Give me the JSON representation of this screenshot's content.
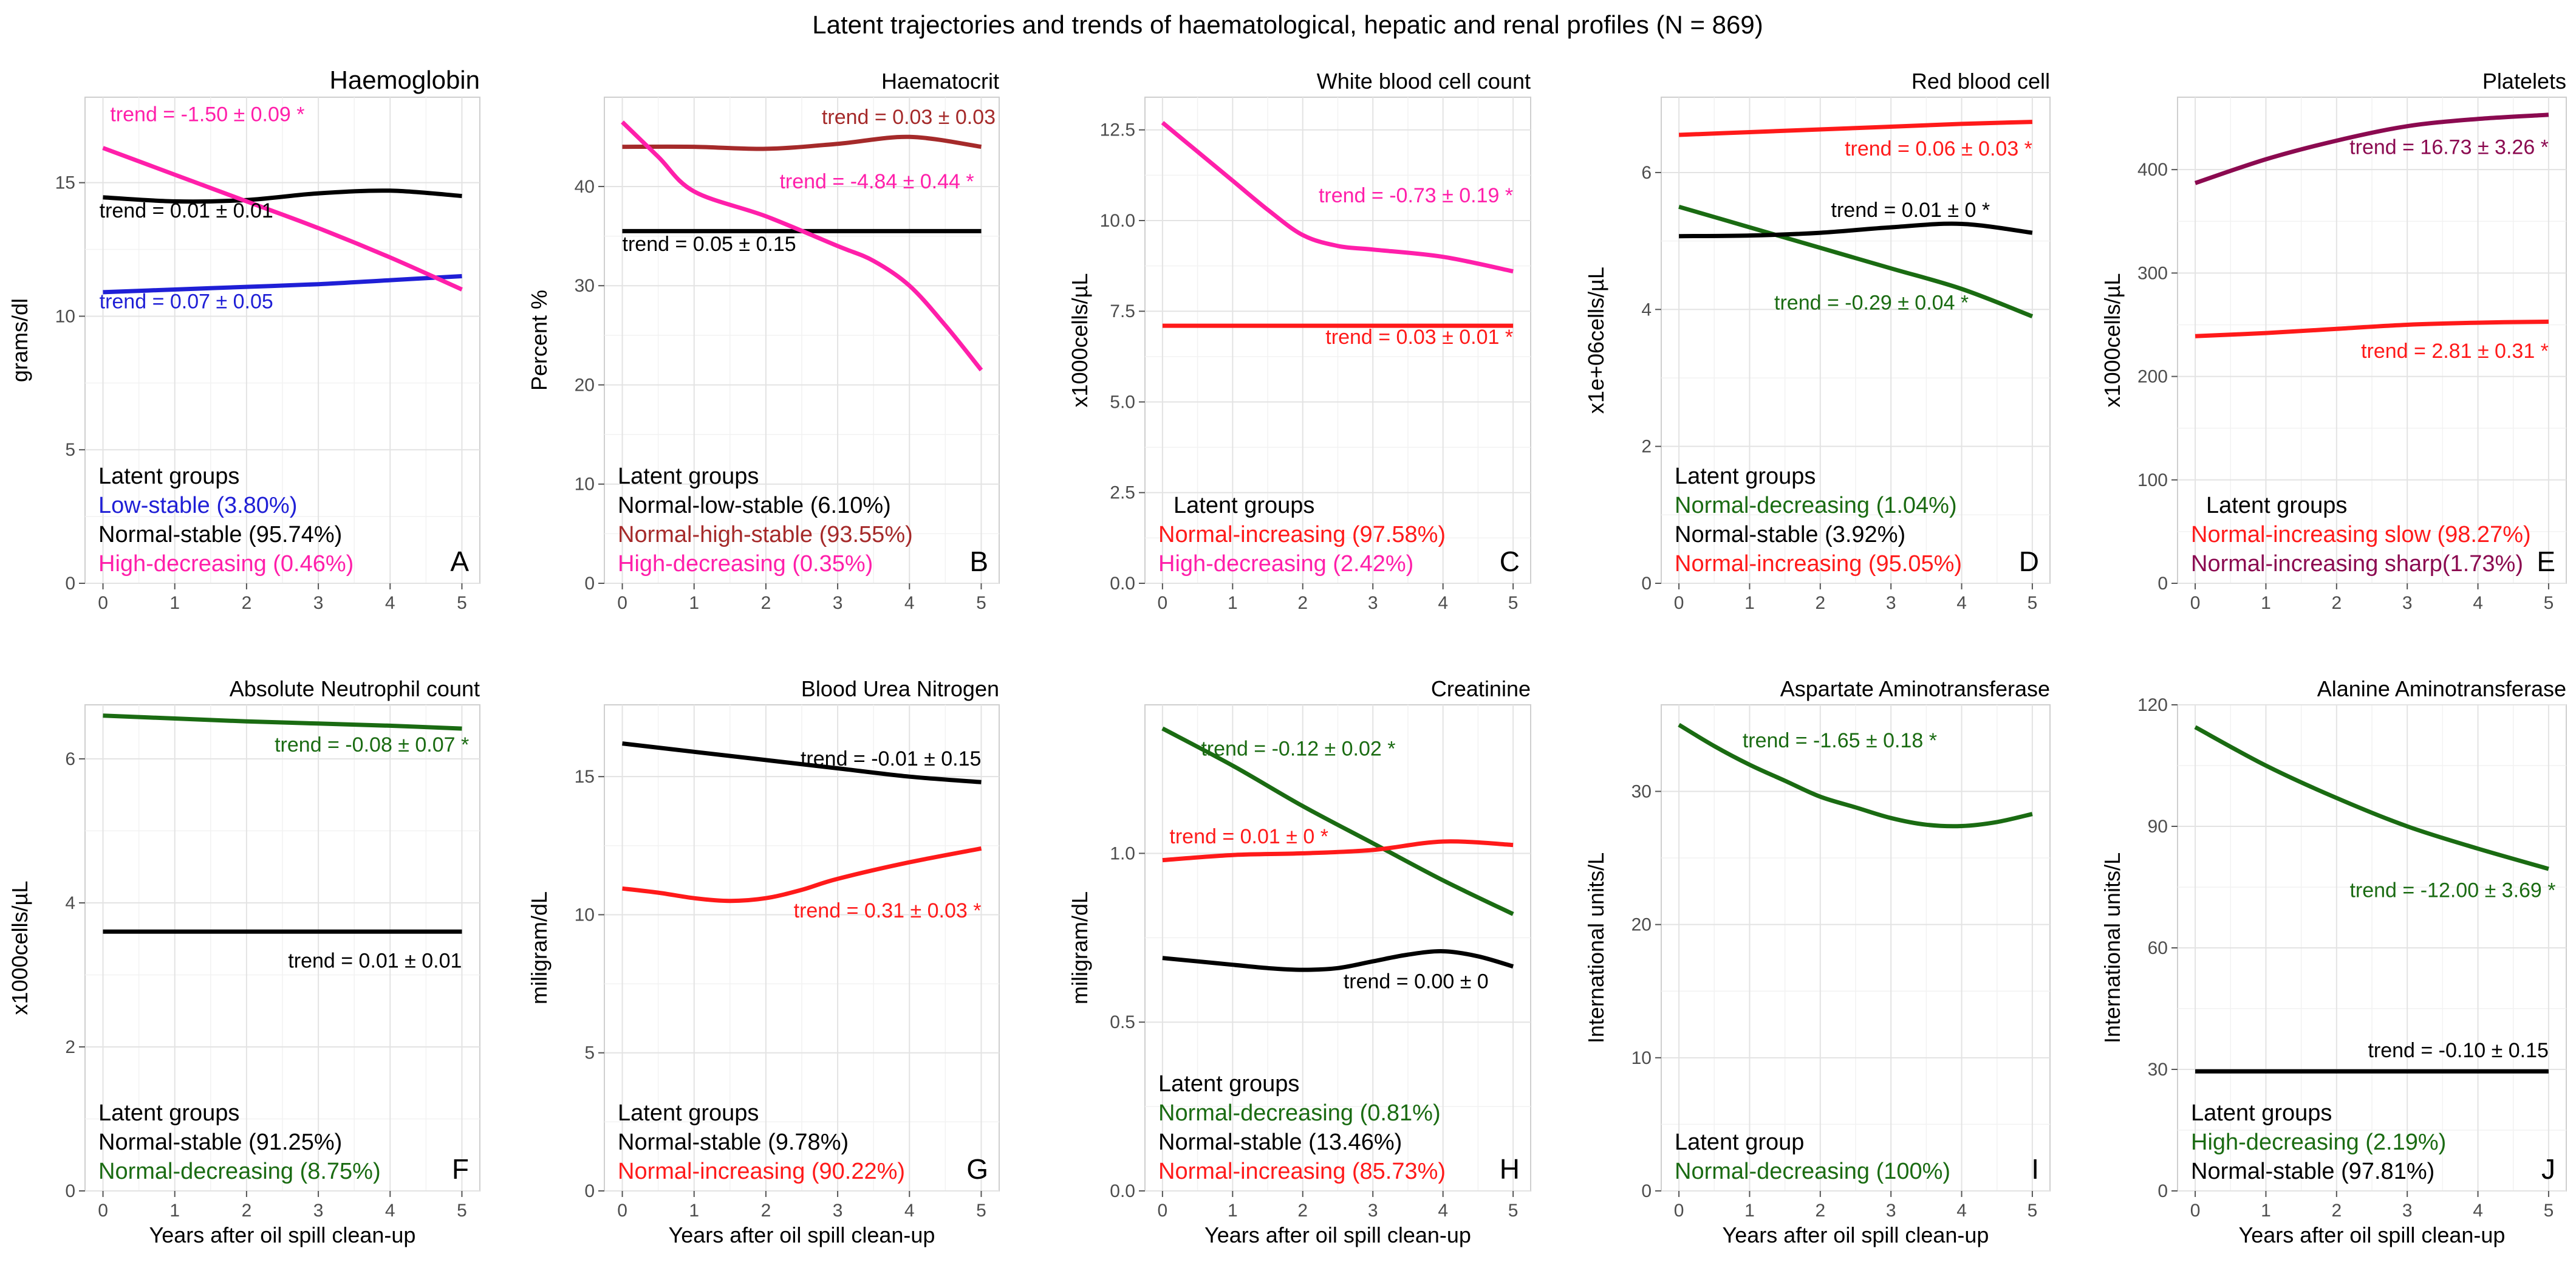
{
  "figure_title": "Latent trajectories and trends of haematological, hepatic and renal profiles (N = 869)",
  "colors": {
    "blue": "#1f1fd6",
    "black": "#000000",
    "magenta": "#ff1faa",
    "brown": "#a52a2a",
    "red": "#ff1a1a",
    "green": "#1a6b12",
    "maroon": "#8b0a50"
  },
  "chart_data": [
    {
      "type": "line",
      "letter": "A",
      "title": "Haemoglobin",
      "ylabel": "grams/dl",
      "xlabel": "",
      "ylim": [
        0,
        18.2
      ],
      "yticks": [
        0,
        5,
        10,
        15
      ],
      "xlim": [
        -0.25,
        5.25
      ],
      "xticks": [
        0,
        1,
        2,
        3,
        4,
        5
      ],
      "legend_title": "Latent groups",
      "series": [
        {
          "name": "Low-stable (3.80%)",
          "color": "#1f1fd6",
          "x": [
            0,
            1,
            2,
            3,
            4,
            5
          ],
          "y": [
            10.9,
            11.0,
            11.1,
            11.2,
            11.35,
            11.5
          ]
        },
        {
          "name": "Normal-stable (95.74%)",
          "color": "#000000",
          "x": [
            0,
            1,
            2,
            3,
            4,
            5
          ],
          "y": [
            14.45,
            14.3,
            14.35,
            14.6,
            14.7,
            14.5
          ]
        },
        {
          "name": "High-decreasing (0.46%)",
          "color": "#ff1faa",
          "x": [
            0,
            1,
            2,
            3,
            4,
            5
          ],
          "y": [
            16.3,
            15.3,
            14.3,
            13.3,
            12.2,
            11.0
          ]
        }
      ],
      "annotations": [
        {
          "text": "trend = -1.50 ± 0.09 *",
          "color": "#ff1faa",
          "x": 0.1,
          "y": 17.3,
          "anchor": "start"
        },
        {
          "text": "trend = 0.01 ± 0.01",
          "color": "#000000",
          "x": -0.05,
          "y": 13.7,
          "anchor": "start"
        },
        {
          "text": "trend = 0.07 ± 0.05",
          "color": "#1f1fd6",
          "x": -0.05,
          "y": 10.3,
          "anchor": "start"
        }
      ]
    },
    {
      "type": "line",
      "letter": "B",
      "title": "Haematocrit",
      "ylabel": "Percent %",
      "xlabel": "",
      "ylim": [
        0,
        49
      ],
      "yticks": [
        0,
        10,
        20,
        30,
        40
      ],
      "xlim": [
        -0.25,
        5.25
      ],
      "xticks": [
        0,
        1,
        2,
        3,
        4,
        5
      ],
      "legend_title": "Latent groups",
      "series": [
        {
          "name": "Normal-low-stable (6.10%)",
          "color": "#000000",
          "x": [
            0,
            1,
            2,
            3,
            4,
            5
          ],
          "y": [
            35.5,
            35.5,
            35.5,
            35.5,
            35.5,
            35.5
          ]
        },
        {
          "name": "Normal-high-stable (93.55%)",
          "color": "#a52a2a",
          "x": [
            0,
            1,
            2,
            3,
            4,
            5
          ],
          "y": [
            44.0,
            44.0,
            43.8,
            44.3,
            45.0,
            44.0
          ]
        },
        {
          "name": "High-decreasing (0.35%)",
          "color": "#ff1faa",
          "x": [
            0,
            0.5,
            1,
            2,
            3,
            3.5,
            4,
            4.5,
            5
          ],
          "y": [
            46.5,
            43.0,
            39.5,
            37.0,
            34.0,
            32.5,
            30.0,
            26.0,
            21.5
          ]
        }
      ],
      "annotations": [
        {
          "text": "trend = 0.03 ± 0.03",
          "color": "#a52a2a",
          "x": 5.2,
          "y": 46.3,
          "anchor": "end"
        },
        {
          "text": "trend = -4.84 ± 0.44 *",
          "color": "#ff1faa",
          "x": 4.9,
          "y": 39.8,
          "anchor": "end"
        },
        {
          "text": "trend = 0.05 ± 0.15",
          "color": "#000000",
          "x": 0.0,
          "y": 33.5,
          "anchor": "start"
        }
      ]
    },
    {
      "type": "line",
      "letter": "C",
      "title": "White blood cell count",
      "ylabel": "x1000cells/µL",
      "xlabel": "",
      "ylim": [
        0,
        13.4
      ],
      "yticks": [
        0.0,
        2.5,
        5.0,
        7.5,
        10.0,
        12.5
      ],
      "xlim": [
        -0.25,
        5.25
      ],
      "xticks": [
        0,
        1,
        2,
        3,
        4,
        5
      ],
      "legend_title": "Latent groups",
      "series": [
        {
          "name": "Normal-increasing (97.58%)",
          "color": "#ff1a1a",
          "x": [
            0,
            1,
            2,
            3,
            4,
            5
          ],
          "y": [
            7.1,
            7.1,
            7.1,
            7.1,
            7.1,
            7.1
          ]
        },
        {
          "name": "High-decreasing (2.42%)",
          "color": "#ff1faa",
          "x": [
            0,
            0.5,
            1,
            1.5,
            2,
            2.5,
            3,
            4,
            5
          ],
          "y": [
            12.7,
            11.9,
            11.1,
            10.3,
            9.6,
            9.3,
            9.2,
            9.0,
            8.6
          ]
        }
      ],
      "annotations": [
        {
          "text": "trend = -0.73 ± 0.19 *",
          "color": "#ff1faa",
          "x": 5.0,
          "y": 10.5,
          "anchor": "end"
        },
        {
          "text": "trend = 0.03 ± 0.01 *",
          "color": "#ff1a1a",
          "x": 5.0,
          "y": 6.6,
          "anchor": "end"
        }
      ]
    },
    {
      "type": "line",
      "letter": "D",
      "title": "Red blood cell",
      "ylabel": "x1e+06cells/µL",
      "xlabel": "",
      "ylim": [
        0,
        7.1
      ],
      "yticks": [
        0,
        2,
        4,
        6
      ],
      "xlim": [
        -0.25,
        5.25
      ],
      "xticks": [
        0,
        1,
        2,
        3,
        4,
        5
      ],
      "legend_title": "Latent groups",
      "series": [
        {
          "name": "Normal-decreasing (1.04%)",
          "color": "#1a6b12",
          "x": [
            0,
            1,
            2,
            3,
            4,
            5
          ],
          "y": [
            5.5,
            5.2,
            4.9,
            4.6,
            4.3,
            3.9
          ]
        },
        {
          "name": "Normal-stable (3.92%)",
          "color": "#000000",
          "x": [
            0,
            1,
            2,
            3,
            4,
            5
          ],
          "y": [
            5.07,
            5.08,
            5.12,
            5.2,
            5.25,
            5.12
          ]
        },
        {
          "name": "Normal-increasing (95.05%)",
          "color": "#ff1a1a",
          "x": [
            0,
            1,
            2,
            3,
            4,
            5
          ],
          "y": [
            6.55,
            6.59,
            6.63,
            6.67,
            6.71,
            6.74
          ]
        }
      ],
      "annotations": [
        {
          "text": "trend = 0.06 ± 0.03 *",
          "color": "#ff1a1a",
          "x": 5.0,
          "y": 6.25,
          "anchor": "end"
        },
        {
          "text": "trend = 0.01 ± 0 *",
          "color": "#000000",
          "x": 4.4,
          "y": 5.35,
          "anchor": "end"
        },
        {
          "text": "trend = -0.29 ± 0.04 *",
          "color": "#1a6b12",
          "x": 4.1,
          "y": 4.0,
          "anchor": "end"
        }
      ]
    },
    {
      "type": "line",
      "letter": "E",
      "title": "Platelets",
      "ylabel": "x1000cells/µL",
      "xlabel": "",
      "ylim": [
        0,
        470
      ],
      "yticks": [
        0,
        100,
        200,
        300,
        400
      ],
      "xlim": [
        -0.25,
        5.25
      ],
      "xticks": [
        0,
        1,
        2,
        3,
        4,
        5
      ],
      "legend_title": "Latent groups",
      "series": [
        {
          "name": "Normal-increasing slow (98.27%)",
          "color": "#ff1a1a",
          "x": [
            0,
            1,
            2,
            3,
            4,
            5
          ],
          "y": [
            239,
            242,
            246,
            250,
            252,
            253
          ]
        },
        {
          "name": "Normal-increasing sharp(1.73%)",
          "color": "#8b0a50",
          "x": [
            0,
            1,
            2,
            3,
            4,
            5
          ],
          "y": [
            387,
            410,
            428,
            442,
            449,
            453
          ]
        }
      ],
      "annotations": [
        {
          "text": "trend = 16.73 ± 3.26 *",
          "color": "#8b0a50",
          "x": 5.0,
          "y": 415,
          "anchor": "end"
        },
        {
          "text": "trend = 2.81 ± 0.31 *",
          "color": "#ff1a1a",
          "x": 5.0,
          "y": 218,
          "anchor": "end"
        }
      ]
    },
    {
      "type": "line",
      "letter": "F",
      "title": "Absolute Neutrophil count",
      "ylabel": "x1000cells/µL",
      "xlabel": "Years after oil spill clean-up",
      "ylim": [
        0,
        6.75
      ],
      "yticks": [
        0,
        2,
        4,
        6
      ],
      "xlim": [
        -0.25,
        5.25
      ],
      "xticks": [
        0,
        1,
        2,
        3,
        4,
        5
      ],
      "legend_title": "Latent groups",
      "series": [
        {
          "name": "Normal-stable (91.25%)",
          "color": "#000000",
          "x": [
            0,
            1,
            2,
            3,
            4,
            5
          ],
          "y": [
            3.6,
            3.6,
            3.6,
            3.6,
            3.6,
            3.6
          ]
        },
        {
          "name": "Normal-decreasing (8.75%)",
          "color": "#1a6b12",
          "x": [
            0,
            1,
            2,
            3,
            4,
            5
          ],
          "y": [
            6.6,
            6.56,
            6.52,
            6.49,
            6.46,
            6.42
          ]
        }
      ],
      "annotations": [
        {
          "text": "trend = -0.08 ± 0.07 *",
          "color": "#1a6b12",
          "x": 5.1,
          "y": 6.1,
          "anchor": "end"
        },
        {
          "text": "trend = 0.01 ± 0.01",
          "color": "#000000",
          "x": 5.0,
          "y": 3.1,
          "anchor": "end"
        }
      ]
    },
    {
      "type": "line",
      "letter": "G",
      "title": "Blood Urea Nitrogen",
      "ylabel": "miligram/dL",
      "xlabel": "Years after oil spill clean-up",
      "ylim": [
        0,
        17.6
      ],
      "yticks": [
        0,
        5,
        10,
        15
      ],
      "xlim": [
        -0.25,
        5.25
      ],
      "xticks": [
        0,
        1,
        2,
        3,
        4,
        5
      ],
      "legend_title": "Latent groups",
      "series": [
        {
          "name": "Normal-stable (9.78%)",
          "color": "#000000",
          "x": [
            0,
            1,
            2,
            3,
            4,
            5
          ],
          "y": [
            16.2,
            15.9,
            15.6,
            15.3,
            15.0,
            14.8
          ]
        },
        {
          "name": "Normal-increasing (90.22%)",
          "color": "#ff1a1a",
          "x": [
            0,
            0.5,
            1,
            1.5,
            2,
            2.5,
            3,
            4,
            5
          ],
          "y": [
            10.95,
            10.8,
            10.6,
            10.5,
            10.6,
            10.9,
            11.3,
            11.9,
            12.4
          ]
        }
      ],
      "annotations": [
        {
          "text": "trend = -0.01 ± 0.15",
          "color": "#000000",
          "x": 5.0,
          "y": 15.4,
          "anchor": "end"
        },
        {
          "text": "trend = 0.31 ± 0.03 *",
          "color": "#ff1a1a",
          "x": 5.0,
          "y": 9.9,
          "anchor": "end"
        }
      ]
    },
    {
      "type": "line",
      "letter": "H",
      "title": "Creatinine",
      "ylabel": "miligram/dL",
      "xlabel": "Years after oil spill clean-up",
      "ylim": [
        0,
        1.44
      ],
      "yticks": [
        0.0,
        0.5,
        1.0
      ],
      "xlim": [
        -0.25,
        5.25
      ],
      "xticks": [
        0,
        1,
        2,
        3,
        4,
        5
      ],
      "legend_title": "Latent groups",
      "series": [
        {
          "name": "Normal-decreasing (0.81%)",
          "color": "#1a6b12",
          "x": [
            0,
            1,
            2,
            3,
            4,
            5
          ],
          "y": [
            1.37,
            1.26,
            1.14,
            1.03,
            0.92,
            0.82
          ]
        },
        {
          "name": "Normal-stable (13.46%)",
          "color": "#000000",
          "x": [
            0,
            0.5,
            1,
            1.5,
            2,
            2.5,
            3,
            3.5,
            4,
            4.5,
            5
          ],
          "y": [
            0.69,
            0.68,
            0.67,
            0.66,
            0.655,
            0.66,
            0.68,
            0.7,
            0.71,
            0.695,
            0.665
          ]
        },
        {
          "name": "Normal-increasing (85.73%)",
          "color": "#ff1a1a",
          "x": [
            0,
            1,
            2,
            3,
            4,
            5
          ],
          "y": [
            0.98,
            0.995,
            1.0,
            1.01,
            1.035,
            1.025
          ]
        }
      ],
      "annotations": [
        {
          "text": "trend = -0.12 ± 0.02 *",
          "color": "#1a6b12",
          "x": 0.55,
          "y": 1.29,
          "anchor": "start"
        },
        {
          "text": "trend = 0.01 ± 0 *",
          "color": "#ff1a1a",
          "x": 0.1,
          "y": 1.03,
          "anchor": "start"
        },
        {
          "text": "trend = 0.00 ± 0",
          "color": "#000000",
          "x": 4.65,
          "y": 0.6,
          "anchor": "end"
        }
      ]
    },
    {
      "type": "line",
      "letter": "I",
      "title": "Aspartate Aminotransferase",
      "ylabel": "International units/L",
      "xlabel": "Years after oil spill clean-up",
      "ylim": [
        0,
        36.5
      ],
      "yticks": [
        0,
        10,
        20,
        30
      ],
      "xlim": [
        -0.25,
        5.25
      ],
      "xticks": [
        0,
        1,
        2,
        3,
        4,
        5
      ],
      "legend_title": "Latent group",
      "series": [
        {
          "name": "Normal-decreasing (100%)",
          "color": "#1a6b12",
          "x": [
            0,
            0.5,
            1,
            1.5,
            2,
            2.5,
            3,
            3.5,
            4,
            4.5,
            5
          ],
          "y": [
            35.0,
            33.4,
            32.0,
            30.8,
            29.6,
            28.8,
            28.0,
            27.5,
            27.4,
            27.7,
            28.3
          ]
        }
      ],
      "annotations": [
        {
          "text": "trend = -1.65 ± 0.18 *",
          "color": "#1a6b12",
          "x": 0.9,
          "y": 33.3,
          "anchor": "start"
        }
      ]
    },
    {
      "type": "line",
      "letter": "J",
      "title": "Alanine Aminotransferase",
      "ylabel": "International units/L",
      "xlabel": "Years after oil spill clean-up",
      "ylim": [
        0,
        120
      ],
      "yticks": [
        0,
        30,
        60,
        90,
        120
      ],
      "xlim": [
        -0.25,
        5.25
      ],
      "xticks": [
        0,
        1,
        2,
        3,
        4,
        5
      ],
      "legend_title": "Latent groups",
      "series": [
        {
          "name": "High-decreasing (2.19%)",
          "color": "#1a6b12",
          "x": [
            0,
            1,
            2,
            3,
            4,
            5
          ],
          "y": [
            114.5,
            105.0,
            97.0,
            90.0,
            84.5,
            79.5
          ]
        },
        {
          "name": "Normal-stable (97.81%)",
          "color": "#000000",
          "x": [
            0,
            1,
            2,
            3,
            4,
            5
          ],
          "y": [
            29.5,
            29.5,
            29.5,
            29.5,
            29.5,
            29.5
          ]
        }
      ],
      "annotations": [
        {
          "text": "trend = -12.00 ± 3.69 *",
          "color": "#1a6b12",
          "x": 5.1,
          "y": 72.5,
          "anchor": "end"
        },
        {
          "text": "trend = -0.10 ± 0.15",
          "color": "#000000",
          "x": 5.0,
          "y": 33.0,
          "anchor": "end"
        }
      ]
    }
  ]
}
